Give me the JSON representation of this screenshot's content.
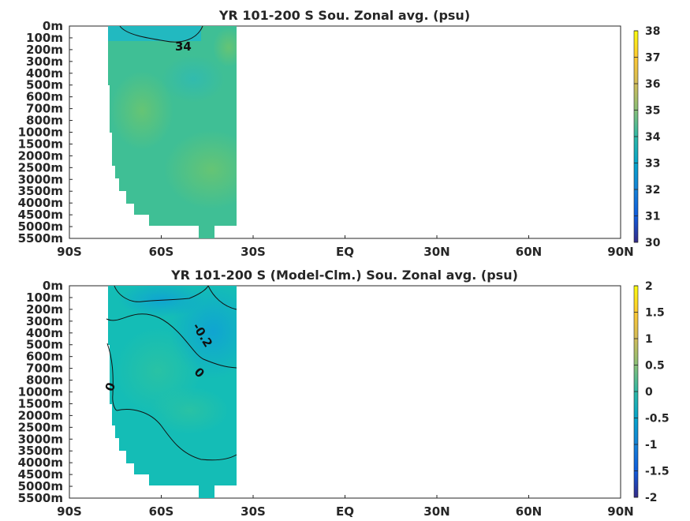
{
  "chart_data": [
    {
      "type": "heatmap",
      "title": "YR 101-200 S Sou. Zonal avg. (psu)",
      "x_tick_labels": [
        "90S",
        "60S",
        "30S",
        "EQ",
        "30N",
        "60N",
        "90N"
      ],
      "x_ticks_deg": [
        -90,
        -60,
        -30,
        0,
        30,
        60,
        90
      ],
      "y_tick_labels": [
        "0m",
        "100m",
        "200m",
        "300m",
        "400m",
        "500m",
        "600m",
        "700m",
        "800m",
        "1000m",
        "1500m",
        "2000m",
        "2500m",
        "3000m",
        "3500m",
        "4000m",
        "4500m",
        "5000m",
        "5500m"
      ],
      "colorbar": {
        "min": 30,
        "max": 38,
        "tick_labels": [
          "30",
          "31",
          "32",
          "33",
          "34",
          "35",
          "36",
          "37",
          "38"
        ]
      },
      "contour_labels": [
        {
          "value": "34"
        }
      ],
      "salinity_range_shown": [
        33.6,
        34.9
      ],
      "colors": {
        "fresh": "#1fb7c4",
        "mid": "#3bbf9d",
        "salty": "#6cc56f"
      }
    },
    {
      "type": "heatmap",
      "title": "YR 101-200 S (Model-Clm.) Sou. Zonal avg. (psu)",
      "x_tick_labels": [
        "90S",
        "60S",
        "30S",
        "EQ",
        "30N",
        "60N",
        "90N"
      ],
      "x_ticks_deg": [
        -90,
        -60,
        -30,
        0,
        30,
        60,
        90
      ],
      "y_tick_labels": [
        "0m",
        "100m",
        "200m",
        "300m",
        "400m",
        "500m",
        "600m",
        "700m",
        "800m",
        "1000m",
        "1500m",
        "2000m",
        "2500m",
        "3000m",
        "3500m",
        "4000m",
        "4500m",
        "5000m",
        "5500m"
      ],
      "colorbar": {
        "min": -2,
        "max": 2,
        "tick_labels": [
          "-2",
          "-1.5",
          "-1",
          "-0.5",
          "0",
          "0.5",
          "1",
          "1.5",
          "2"
        ]
      },
      "contour_labels": [
        {
          "value": "-0.2"
        },
        {
          "value": "0"
        },
        {
          "value": "0"
        }
      ],
      "anomaly_range_shown": [
        -0.4,
        0.1
      ],
      "colors": {
        "negative": "#16a9cc",
        "near_zero": "#12bdb8",
        "positive": "#25c0a4"
      }
    }
  ]
}
